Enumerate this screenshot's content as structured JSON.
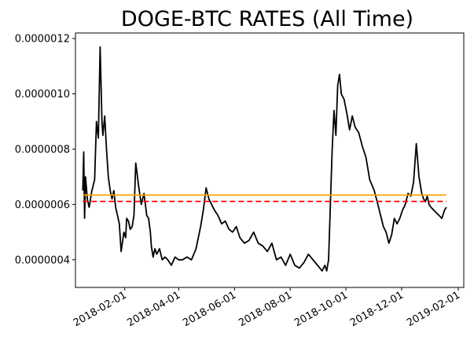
{
  "chart_data": {
    "type": "line",
    "title": "DOGE-BTC RATES (All Time)",
    "xlabel": "",
    "ylabel": "",
    "x_type": "date",
    "xlim": [
      "2017-12-09",
      "2019-02-07"
    ],
    "ylim": [
      3e-07,
      1.22e-06
    ],
    "x_ticks": [
      "2018-02-01",
      "2018-04-01",
      "2018-06-01",
      "2018-08-01",
      "2018-10-01",
      "2018-12-01",
      "2019-02-01"
    ],
    "y_ticks": [
      4e-07,
      6e-07,
      8e-07,
      1e-06,
      1.2e-06
    ],
    "y_tick_labels": [
      "0.0000004",
      "0.0000006",
      "0.0000008",
      "0.0000010",
      "0.0000012"
    ],
    "grid": false,
    "legend": "none",
    "series": [
      {
        "style": "solid",
        "color": "#000000",
        "x": [
          "2017-12-17",
          "2017-12-18",
          "2017-12-19",
          "2017-12-20",
          "2017-12-22",
          "2017-12-24",
          "2017-12-27",
          "2017-12-30",
          "2018-01-01",
          "2018-01-03",
          "2018-01-05",
          "2018-01-07",
          "2018-01-08",
          "2018-01-10",
          "2018-01-12",
          "2018-01-14",
          "2018-01-16",
          "2018-01-18",
          "2018-01-20",
          "2018-01-22",
          "2018-01-24",
          "2018-01-26",
          "2018-01-28",
          "2018-01-31",
          "2018-02-02",
          "2018-02-03",
          "2018-02-05",
          "2018-02-07",
          "2018-02-09",
          "2018-02-11",
          "2018-02-13",
          "2018-02-16",
          "2018-02-19",
          "2018-02-22",
          "2018-02-25",
          "2018-02-27",
          "2018-03-01",
          "2018-03-02",
          "2018-03-04",
          "2018-03-06",
          "2018-03-08",
          "2018-03-11",
          "2018-03-14",
          "2018-03-17",
          "2018-03-20",
          "2018-03-24",
          "2018-03-28",
          "2018-04-01",
          "2018-04-05",
          "2018-04-10",
          "2018-04-15",
          "2018-04-20",
          "2018-04-25",
          "2018-04-28",
          "2018-05-01",
          "2018-05-04",
          "2018-05-07",
          "2018-05-10",
          "2018-05-14",
          "2018-05-18",
          "2018-05-22",
          "2018-05-26",
          "2018-05-30",
          "2018-06-03",
          "2018-06-07",
          "2018-06-12",
          "2018-06-17",
          "2018-06-22",
          "2018-06-27",
          "2018-07-02",
          "2018-07-07",
          "2018-07-12",
          "2018-07-17",
          "2018-07-22",
          "2018-07-27",
          "2018-08-01",
          "2018-08-06",
          "2018-08-11",
          "2018-08-16",
          "2018-08-21",
          "2018-08-26",
          "2018-08-31",
          "2018-09-05",
          "2018-09-08",
          "2018-09-10",
          "2018-09-12",
          "2018-09-14",
          "2018-09-16",
          "2018-09-18",
          "2018-09-20",
          "2018-09-22",
          "2018-09-24",
          "2018-09-26",
          "2018-09-29",
          "2018-10-02",
          "2018-10-05",
          "2018-10-08",
          "2018-10-11",
          "2018-10-15",
          "2018-10-19",
          "2018-10-23",
          "2018-10-27",
          "2018-11-01",
          "2018-11-05",
          "2018-11-08",
          "2018-11-11",
          "2018-11-14",
          "2018-11-17",
          "2018-11-20",
          "2018-11-23",
          "2018-11-26",
          "2018-11-29",
          "2018-12-02",
          "2018-12-05",
          "2018-12-08",
          "2018-12-11",
          "2018-12-14",
          "2018-12-17",
          "2018-12-20",
          "2018-12-23",
          "2018-12-25",
          "2018-12-27",
          "2018-12-29",
          "2018-12-31",
          "2019-01-02",
          "2019-01-05",
          "2019-01-08",
          "2019-01-11",
          "2019-01-14",
          "2019-01-17",
          "2019-01-19"
        ],
        "y": [
          6.5e-07,
          7.9e-07,
          5.5e-07,
          7e-07,
          6.2e-07,
          5.9e-07,
          6.5e-07,
          6.9e-07,
          9e-07,
          8.4e-07,
          1.17e-06,
          9e-07,
          8.5e-07,
          9.2e-07,
          8e-07,
          7e-07,
          6.5e-07,
          6.2e-07,
          6.5e-07,
          5.9e-07,
          5.6e-07,
          5.3e-07,
          4.3e-07,
          5e-07,
          4.8e-07,
          5.5e-07,
          5.4e-07,
          5.1e-07,
          5.2e-07,
          5.6e-07,
          7.5e-07,
          6.7e-07,
          6e-07,
          6.4e-07,
          5.6e-07,
          5.5e-07,
          5e-07,
          4.5e-07,
          4.1e-07,
          4.4e-07,
          4.2e-07,
          4.4e-07,
          4e-07,
          4.1e-07,
          4e-07,
          3.8e-07,
          4.1e-07,
          4e-07,
          4e-07,
          4.1e-07,
          4e-07,
          4.4e-07,
          5.2e-07,
          5.8e-07,
          6.6e-07,
          6.2e-07,
          6e-07,
          5.8e-07,
          5.6e-07,
          5.3e-07,
          5.4e-07,
          5.1e-07,
          5e-07,
          5.2e-07,
          4.8e-07,
          4.6e-07,
          4.7e-07,
          5e-07,
          4.6e-07,
          4.5e-07,
          4.3e-07,
          4.6e-07,
          4e-07,
          4.1e-07,
          3.8e-07,
          4.2e-07,
          3.8e-07,
          3.7e-07,
          3.9e-07,
          4.2e-07,
          4e-07,
          3.8e-07,
          3.6e-07,
          3.8e-07,
          3.6e-07,
          4e-07,
          6e-07,
          8e-07,
          9.4e-07,
          8.5e-07,
          1.03e-06,
          1.07e-06,
          1e-06,
          9.8e-07,
          9.3e-07,
          8.7e-07,
          9.2e-07,
          8.8e-07,
          8.6e-07,
          8.1e-07,
          7.7e-07,
          6.9e-07,
          6.5e-07,
          6e-07,
          5.6e-07,
          5.2e-07,
          5e-07,
          4.6e-07,
          4.9e-07,
          5.5e-07,
          5.3e-07,
          5.5e-07,
          5.8e-07,
          6e-07,
          6.4e-07,
          6.3e-07,
          6.8e-07,
          8.2e-07,
          7e-07,
          6.4e-07,
          6.2e-07,
          6.1e-07,
          6.3e-07,
          6e-07,
          5.9e-07,
          5.8e-07,
          5.7e-07,
          5.6e-07,
          5.5e-07,
          5.8e-07,
          5.9e-07
        ]
      },
      {
        "style": "solid",
        "color": "#ffa500",
        "x": [
          "2017-12-17",
          "2019-01-19"
        ],
        "y": [
          6.34e-07,
          6.34e-07
        ]
      },
      {
        "style": "dashed",
        "color": "#ff0000",
        "x": [
          "2017-12-17",
          "2019-01-19"
        ],
        "y": [
          6.11e-07,
          6.11e-07
        ]
      }
    ]
  }
}
